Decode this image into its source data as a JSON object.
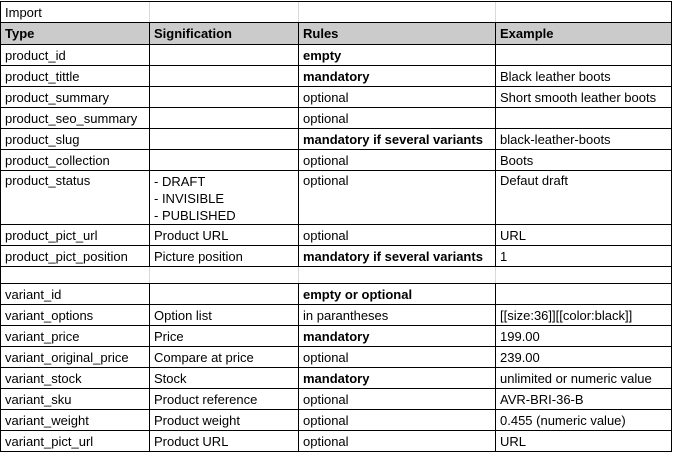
{
  "sheet": {
    "title": "Import",
    "columns": [
      "Type",
      "Signification",
      "Rules",
      "Example"
    ],
    "rows": [
      {
        "type": "product_id",
        "signification": "",
        "rules": "empty",
        "rules_bold": true,
        "example": ""
      },
      {
        "type": "product_tittle",
        "signification": "",
        "rules": "mandatory",
        "rules_bold": true,
        "example": "Black leather boots"
      },
      {
        "type": "product_summary",
        "signification": "",
        "rules": "optional",
        "rules_bold": false,
        "example": "Short smooth leather boots"
      },
      {
        "type": "product_seo_summary",
        "signification": "",
        "rules": "optional",
        "rules_bold": false,
        "example": ""
      },
      {
        "type": "product_slug",
        "signification": "",
        "rules": "mandatory if several variants",
        "rules_bold": true,
        "example": "black-leather-boots"
      },
      {
        "type": "product_collection",
        "signification": "",
        "rules": "optional",
        "rules_bold": false,
        "example": "Boots"
      },
      {
        "type": "product_status",
        "signification": "- DRAFT\n- INVISIBLE\n- PUBLISHED",
        "rules": "optional",
        "rules_bold": false,
        "example": "Defaut draft",
        "tall": true
      },
      {
        "type": "product_pict_url",
        "signification": "Product URL",
        "rules": "optional",
        "rules_bold": false,
        "example": "URL"
      },
      {
        "type": "product_pict_position",
        "signification": "Picture position",
        "rules": "mandatory if several variants",
        "rules_bold": true,
        "example": "1"
      },
      {
        "spacer": true
      },
      {
        "type": "variant_id",
        "signification": "",
        "rules": "empty or optional",
        "rules_bold": true,
        "example": ""
      },
      {
        "type": "variant_options",
        "signification": "Option list",
        "rules": "in parantheses",
        "rules_bold": false,
        "example": "[[size:36]][[color:black]]"
      },
      {
        "type": "variant_price",
        "signification": "Price",
        "rules": "mandatory",
        "rules_bold": true,
        "example": "199.00"
      },
      {
        "type": "variant_original_price",
        "signification": "Compare at price",
        "rules": "optional",
        "rules_bold": false,
        "example": "239.00"
      },
      {
        "type": "variant_stock",
        "signification": "Stock",
        "rules": "mandatory",
        "rules_bold": true,
        "example": "unlimited or numeric value"
      },
      {
        "type": "variant_sku",
        "signification": "Product reference",
        "rules": "optional",
        "rules_bold": false,
        "example": "AVR-BRI-36-B"
      },
      {
        "type": "variant_weight",
        "signification": "Product weight",
        "rules": "optional",
        "rules_bold": false,
        "example": "0.455 (numeric value)"
      },
      {
        "type": "variant_pict_url",
        "signification": "Product URL",
        "rules": "optional",
        "rules_bold": false,
        "example": "URL"
      }
    ],
    "colors": {
      "header_bg": "#cbcbcb",
      "border": "#000000",
      "gridline": "#d9d9d9",
      "text": "#000000",
      "background": "#ffffff"
    }
  }
}
